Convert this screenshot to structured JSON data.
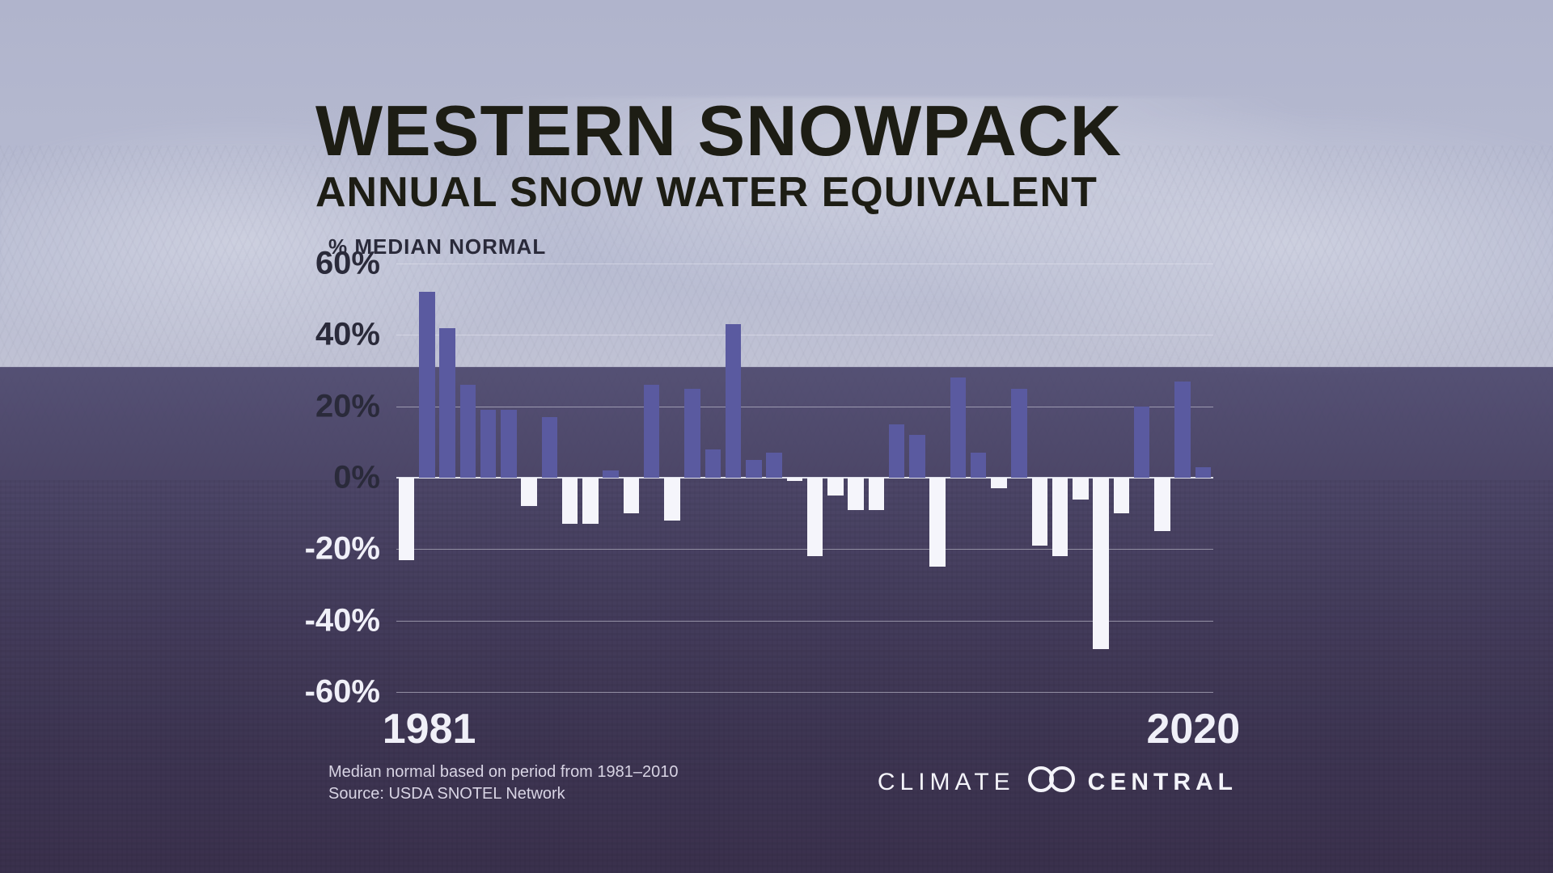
{
  "title": "WESTERN SNOWPACK",
  "subtitle": "ANNUAL SNOW WATER EQUIVALENT",
  "y_axis_label": "% MEDIAN NORMAL",
  "footnote_line1": "Median normal based on period from  1981–2010",
  "footnote_line2": "Source: USDA SNOTEL Network",
  "brand_left": "CLIMATE",
  "brand_right": "CENTRAL",
  "chart": {
    "type": "bar",
    "start_year": 1981,
    "end_year": 2020,
    "x_labels": {
      "first": "1981",
      "last": "2020"
    },
    "ylim": [
      -60,
      60
    ],
    "ytick_step": 20,
    "yticks": [
      "60%",
      "40%",
      "20%",
      "0%",
      "-20%",
      "-40%",
      "-60%"
    ],
    "positive_color": "#5a5aa0",
    "negative_color": "#f5f5fb",
    "grid_color": "rgba(230,230,240,0.5)",
    "zero_line_color": "rgba(240,240,250,0.9)",
    "bar_gap_ratio": 0.22,
    "title_color": "#1d1d14",
    "tick_color": "#f0f0f8",
    "footnote_color": "#d8d4e4",
    "title_fontsize": 88,
    "subtitle_fontsize": 52,
    "tick_fontsize": 40,
    "xlabel_fontsize": 52,
    "values": [
      -23,
      52,
      42,
      26,
      19,
      19,
      -8,
      17,
      -13,
      -13,
      2,
      -10,
      26,
      -12,
      25,
      8,
      43,
      5,
      7,
      -1,
      -22,
      -5,
      -9,
      -9,
      15,
      12,
      -25,
      28,
      7,
      -3,
      25,
      -19,
      -22,
      -6,
      -48,
      -10,
      20,
      -15,
      27,
      3
    ]
  }
}
